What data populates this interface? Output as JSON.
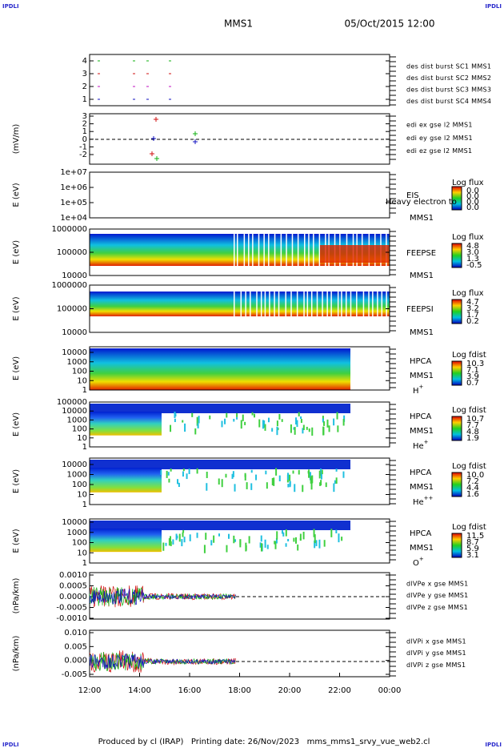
{
  "header": {
    "left_logo": "IPDLI",
    "right_logo": "IPDLI",
    "title": "MMS1",
    "date": "05/Oct/2015 12:00"
  },
  "panels": [
    {
      "yticks": [
        "4",
        "3",
        "2",
        "1"
      ],
      "legend": [
        {
          "text": "des dist burst SC1 MMS1",
          "color": "#1010c0"
        },
        {
          "text": "des dist burst SC2 MMS2",
          "color": "#c010c0"
        },
        {
          "text": "des dist burst SC3 MMS3",
          "color": "#d01010"
        },
        {
          "text": "des dist burst SC4 MMS4",
          "color": "#10b010"
        }
      ]
    },
    {
      "ylabel": "(mV/m)",
      "yticks": [
        "3",
        "2",
        "1",
        "0",
        "-1",
        "-2"
      ],
      "legend": [
        {
          "text": "edi ex gse l2 MMS1",
          "color": "#d01010"
        },
        {
          "text": "edi ey gse l2 MMS1",
          "color": "#10b010"
        },
        {
          "text": "edi ez gse l2 MMS1",
          "color": "#1010c0"
        }
      ]
    },
    {
      "ylabel": "E (eV)",
      "yticks": [
        "1e+07",
        "1e+06",
        "1e+05",
        "1e+04"
      ],
      "instrument": "EIS",
      "spacecraft": "MMS1",
      "note": "Heavy electron to",
      "colorbar_title": "Log flux",
      "colorbar_ticks": [
        "0.0",
        "0.0",
        "0.0",
        "0.0"
      ]
    },
    {
      "ylabel": "E (eV)",
      "yticks": [
        "1000000",
        "100000",
        "10000"
      ],
      "instrument": "FEEPSE",
      "spacecraft": "MMS1",
      "colorbar_title": "Log flux",
      "colorbar_ticks": [
        "4.8",
        "3.0",
        "1.3",
        "-0.5"
      ]
    },
    {
      "ylabel": "E (eV)",
      "yticks": [
        "1000000",
        "100000",
        "10000"
      ],
      "instrument": "FEEPSI",
      "spacecraft": "MMS1",
      "colorbar_title": "Log flux",
      "colorbar_ticks": [
        "4.7",
        "3.2",
        "1.7",
        "0.2"
      ]
    },
    {
      "ylabel": "E (eV)",
      "yticks": [
        "10000",
        "1000",
        "100",
        "10",
        "1"
      ],
      "instrument": "HPCA",
      "spacecraft": "MMS1",
      "species": {
        "base": "H",
        "sup": "+"
      },
      "colorbar_title": "Log fdist",
      "colorbar_ticks": [
        "10.3",
        "7.1",
        "3.9",
        "0.7"
      ]
    },
    {
      "ylabel": "E (eV)",
      "yticks": [
        "100000",
        "10000",
        "1000",
        "100",
        "10",
        "1"
      ],
      "instrument": "HPCA",
      "spacecraft": "MMS1",
      "species": {
        "base": "He",
        "sup": "+"
      },
      "colorbar_title": "Log fdist",
      "colorbar_ticks": [
        "10.7",
        "7.7",
        "4.8",
        "1.9"
      ]
    },
    {
      "ylabel": "E (eV)",
      "yticks": [
        "10000",
        "1000",
        "100",
        "10",
        "1"
      ],
      "instrument": "HPCA",
      "spacecraft": "MMS1",
      "species": {
        "base": "He",
        "sup": "++"
      },
      "colorbar_title": "Log fdist",
      "colorbar_ticks": [
        "10.0",
        "7.2",
        "4.4",
        "1.6"
      ]
    },
    {
      "ylabel": "E (eV)",
      "yticks": [
        "10000",
        "1000",
        "100",
        "10",
        "1"
      ],
      "instrument": "HPCA",
      "spacecraft": "MMS1",
      "species": {
        "base": "O",
        "sup": "+"
      },
      "colorbar_title": "Log fdist",
      "colorbar_ticks": [
        "11.5",
        "8.7",
        "5.9",
        "3.1"
      ]
    },
    {
      "ylabel": "(nPa/km)",
      "yticks": [
        "0.0010",
        "0.0005",
        "0.0000",
        "-0.0005",
        "-0.0010"
      ],
      "legend": [
        {
          "text": "dlVPe x gse MMS1",
          "color": "#d01010"
        },
        {
          "text": "dlVPe y gse MMS1",
          "color": "#10b010"
        },
        {
          "text": "dlVPe z gse MMS1",
          "color": "#1010c0"
        }
      ]
    },
    {
      "ylabel": "(nPa/km)",
      "yticks": [
        "0.010",
        "0.005",
        "0.000",
        "-0.005"
      ],
      "legend": [
        {
          "text": "dlVPi x gse MMS1",
          "color": "#d01010"
        },
        {
          "text": "dlVPi y gse MMS1",
          "color": "#10b010"
        },
        {
          "text": "dlVPi z gse MMS1",
          "color": "#1010c0"
        }
      ]
    }
  ],
  "xticks": [
    "12:00",
    "14:00",
    "16:00",
    "18:00",
    "20:00",
    "22:00",
    "00:00"
  ],
  "footer": "Produced by cl (IRAP)   Printing date: 26/Nov/2023   mms_mms1_srvy_vue_web2.cl"
}
